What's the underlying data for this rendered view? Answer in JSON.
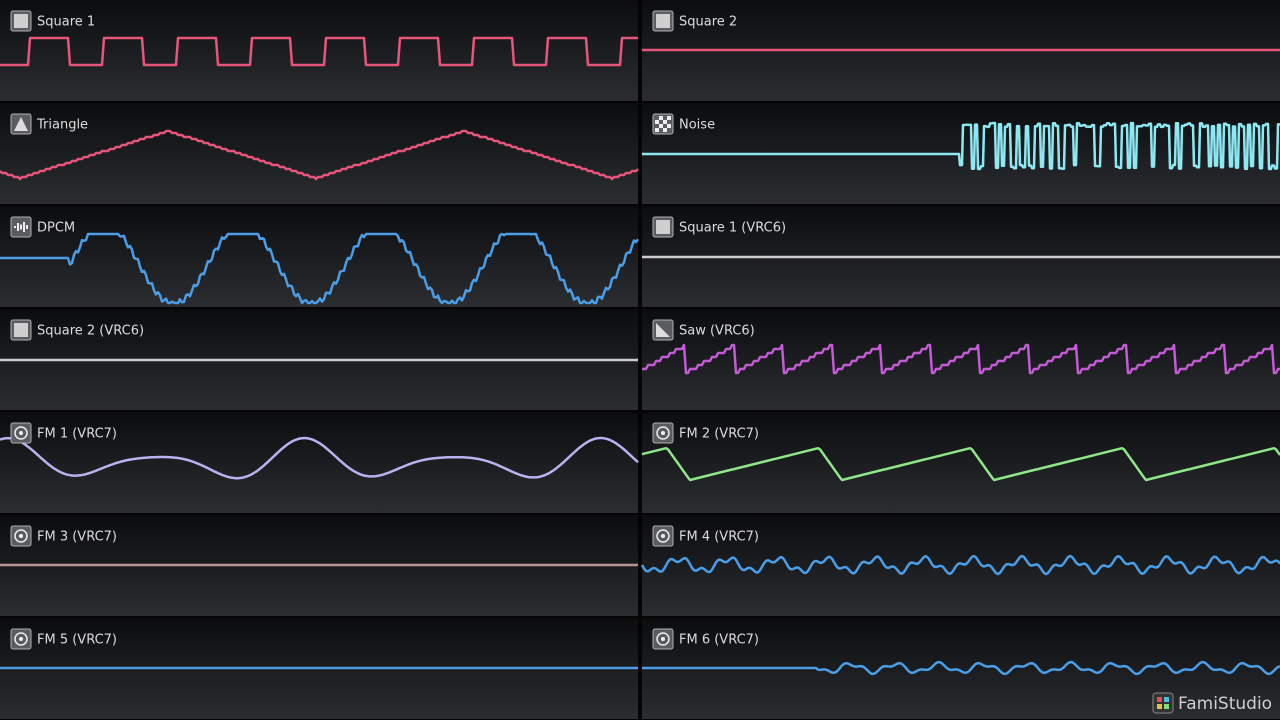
{
  "panels": [
    "Square 1",
    "Square 2",
    "Triangle",
    "Noise",
    "DPCM",
    "Square 1 (VRC6)",
    "Square 2 (VRC6)",
    "Saw (VRC6)",
    "FM 1 (VRC7)",
    "FM 2 (VRC7)",
    "FM 3 (VRC7)",
    "FM 4 (VRC7)",
    "FM 5 (VRC7)",
    "FM 6 (VRC7)"
  ],
  "logo": "FamiStudio"
}
